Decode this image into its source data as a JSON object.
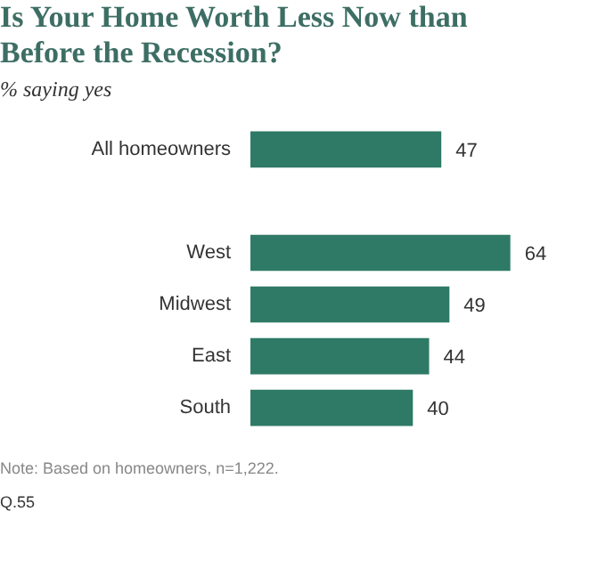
{
  "chart_data": {
    "type": "bar",
    "orientation": "horizontal",
    "title": "Is Your Home Worth Less Now than Before the Recession?",
    "subtitle": "% saying yes",
    "categories": [
      "All homeowners",
      null,
      "West",
      "Midwest",
      "East",
      "South"
    ],
    "values": [
      47,
      null,
      64,
      49,
      44,
      40
    ],
    "color": "#2e7a66",
    "data_labels": true,
    "annotations": [
      "Note: Based on homeowners, n=1,222.",
      "Q.55"
    ]
  }
}
